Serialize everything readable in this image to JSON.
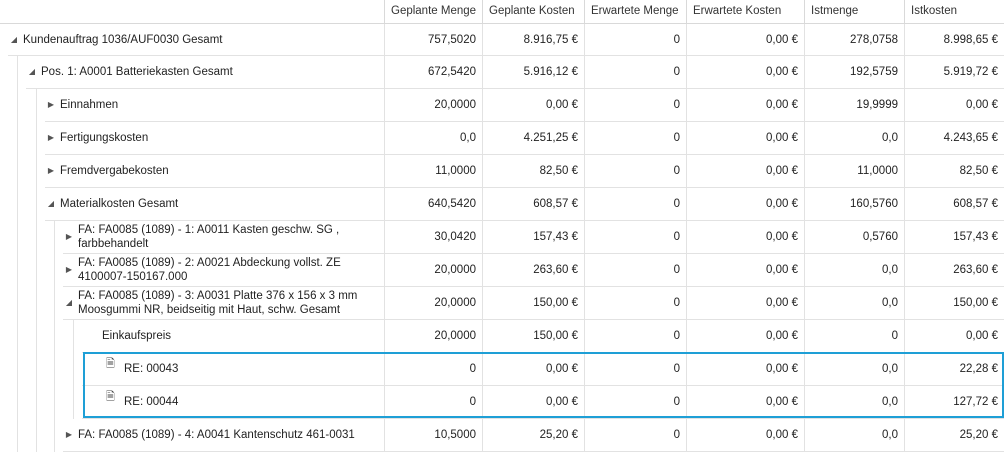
{
  "columns": [
    "Geplante Menge",
    "Geplante Kosten",
    "Erwartete Menge",
    "Erwartete Kosten",
    "Istmenge",
    "Istkosten"
  ],
  "rows": [
    {
      "label": "Kundenauftrag 1036/AUF0030 Gesamt",
      "expander": "expanded",
      "values": [
        "757,5020",
        "8.916,75 €",
        "0",
        "0,00 €",
        "278,0758",
        "8.998,65 €"
      ]
    },
    {
      "label": "Pos. 1: A0001 Batteriekasten Gesamt",
      "expander": "expanded",
      "values": [
        "672,5420",
        "5.916,12 €",
        "0",
        "0,00 €",
        "192,5759",
        "5.919,72 €"
      ]
    },
    {
      "label": "Einnahmen",
      "expander": "collapsed",
      "values": [
        "20,0000",
        "0,00 €",
        "0",
        "0,00 €",
        "19,9999",
        "0,00 €"
      ]
    },
    {
      "label": "Fertigungskosten",
      "expander": "collapsed",
      "values": [
        "0,0",
        "4.251,25 €",
        "0",
        "0,00 €",
        "0,0",
        "4.243,65 €"
      ]
    },
    {
      "label": "Fremdvergabekosten",
      "expander": "collapsed",
      "values": [
        "11,0000",
        "82,50 €",
        "0",
        "0,00 €",
        "11,0000",
        "82,50 €"
      ]
    },
    {
      "label": "Materialkosten Gesamt",
      "expander": "expanded",
      "values": [
        "640,5420",
        "608,57 €",
        "0",
        "0,00 €",
        "160,5760",
        "608,57 €"
      ]
    },
    {
      "label": "FA: FA0085 (1089) - 1: A0011 Kasten geschw. SG , farbbehandelt",
      "expander": "collapsed",
      "values": [
        "30,0420",
        "157,43 €",
        "0",
        "0,00 €",
        "0,5760",
        "157,43 €"
      ]
    },
    {
      "label": "FA: FA0085 (1089) - 2: A0021 Abdeckung vollst. ZE 4100007-150167.000",
      "expander": "collapsed",
      "values": [
        "20,0000",
        "263,60 €",
        "0",
        "0,00 €",
        "0,0",
        "263,60 €"
      ]
    },
    {
      "label": "FA: FA0085 (1089) - 3: A0031 Platte 376 x 156 x 3 mm Moosgummi NR, beidseitig mit Haut, schw. Gesamt",
      "expander": "expanded",
      "values": [
        "20,0000",
        "150,00 €",
        "0",
        "0,00 €",
        "0,0",
        "150,00 €"
      ]
    },
    {
      "label": "Einkaufspreis",
      "expander": "none",
      "values": [
        "20,0000",
        "150,00 €",
        "0",
        "0,00 €",
        "0",
        "0,00 €"
      ]
    },
    {
      "label": "RE: 00043",
      "expander": "none",
      "doc": "document-icon",
      "values": [
        "0",
        "0,00 €",
        "0",
        "0,00 €",
        "0,0",
        "22,28 €"
      ]
    },
    {
      "label": "RE: 00044",
      "expander": "none",
      "doc": "document-filled-icon",
      "values": [
        "0",
        "0,00 €",
        "0",
        "0,00 €",
        "0,0",
        "127,72 €"
      ]
    },
    {
      "label": "FA: FA0085 (1089) - 4: A0041 Kantenschutz 461-0031",
      "expander": "collapsed",
      "values": [
        "10,5000",
        "25,20 €",
        "0",
        "0,00 €",
        "0,0",
        "25,20 €"
      ]
    }
  ],
  "colors": {
    "highlight": "#1e9fd6",
    "grid_line": "#e2e2e2"
  }
}
